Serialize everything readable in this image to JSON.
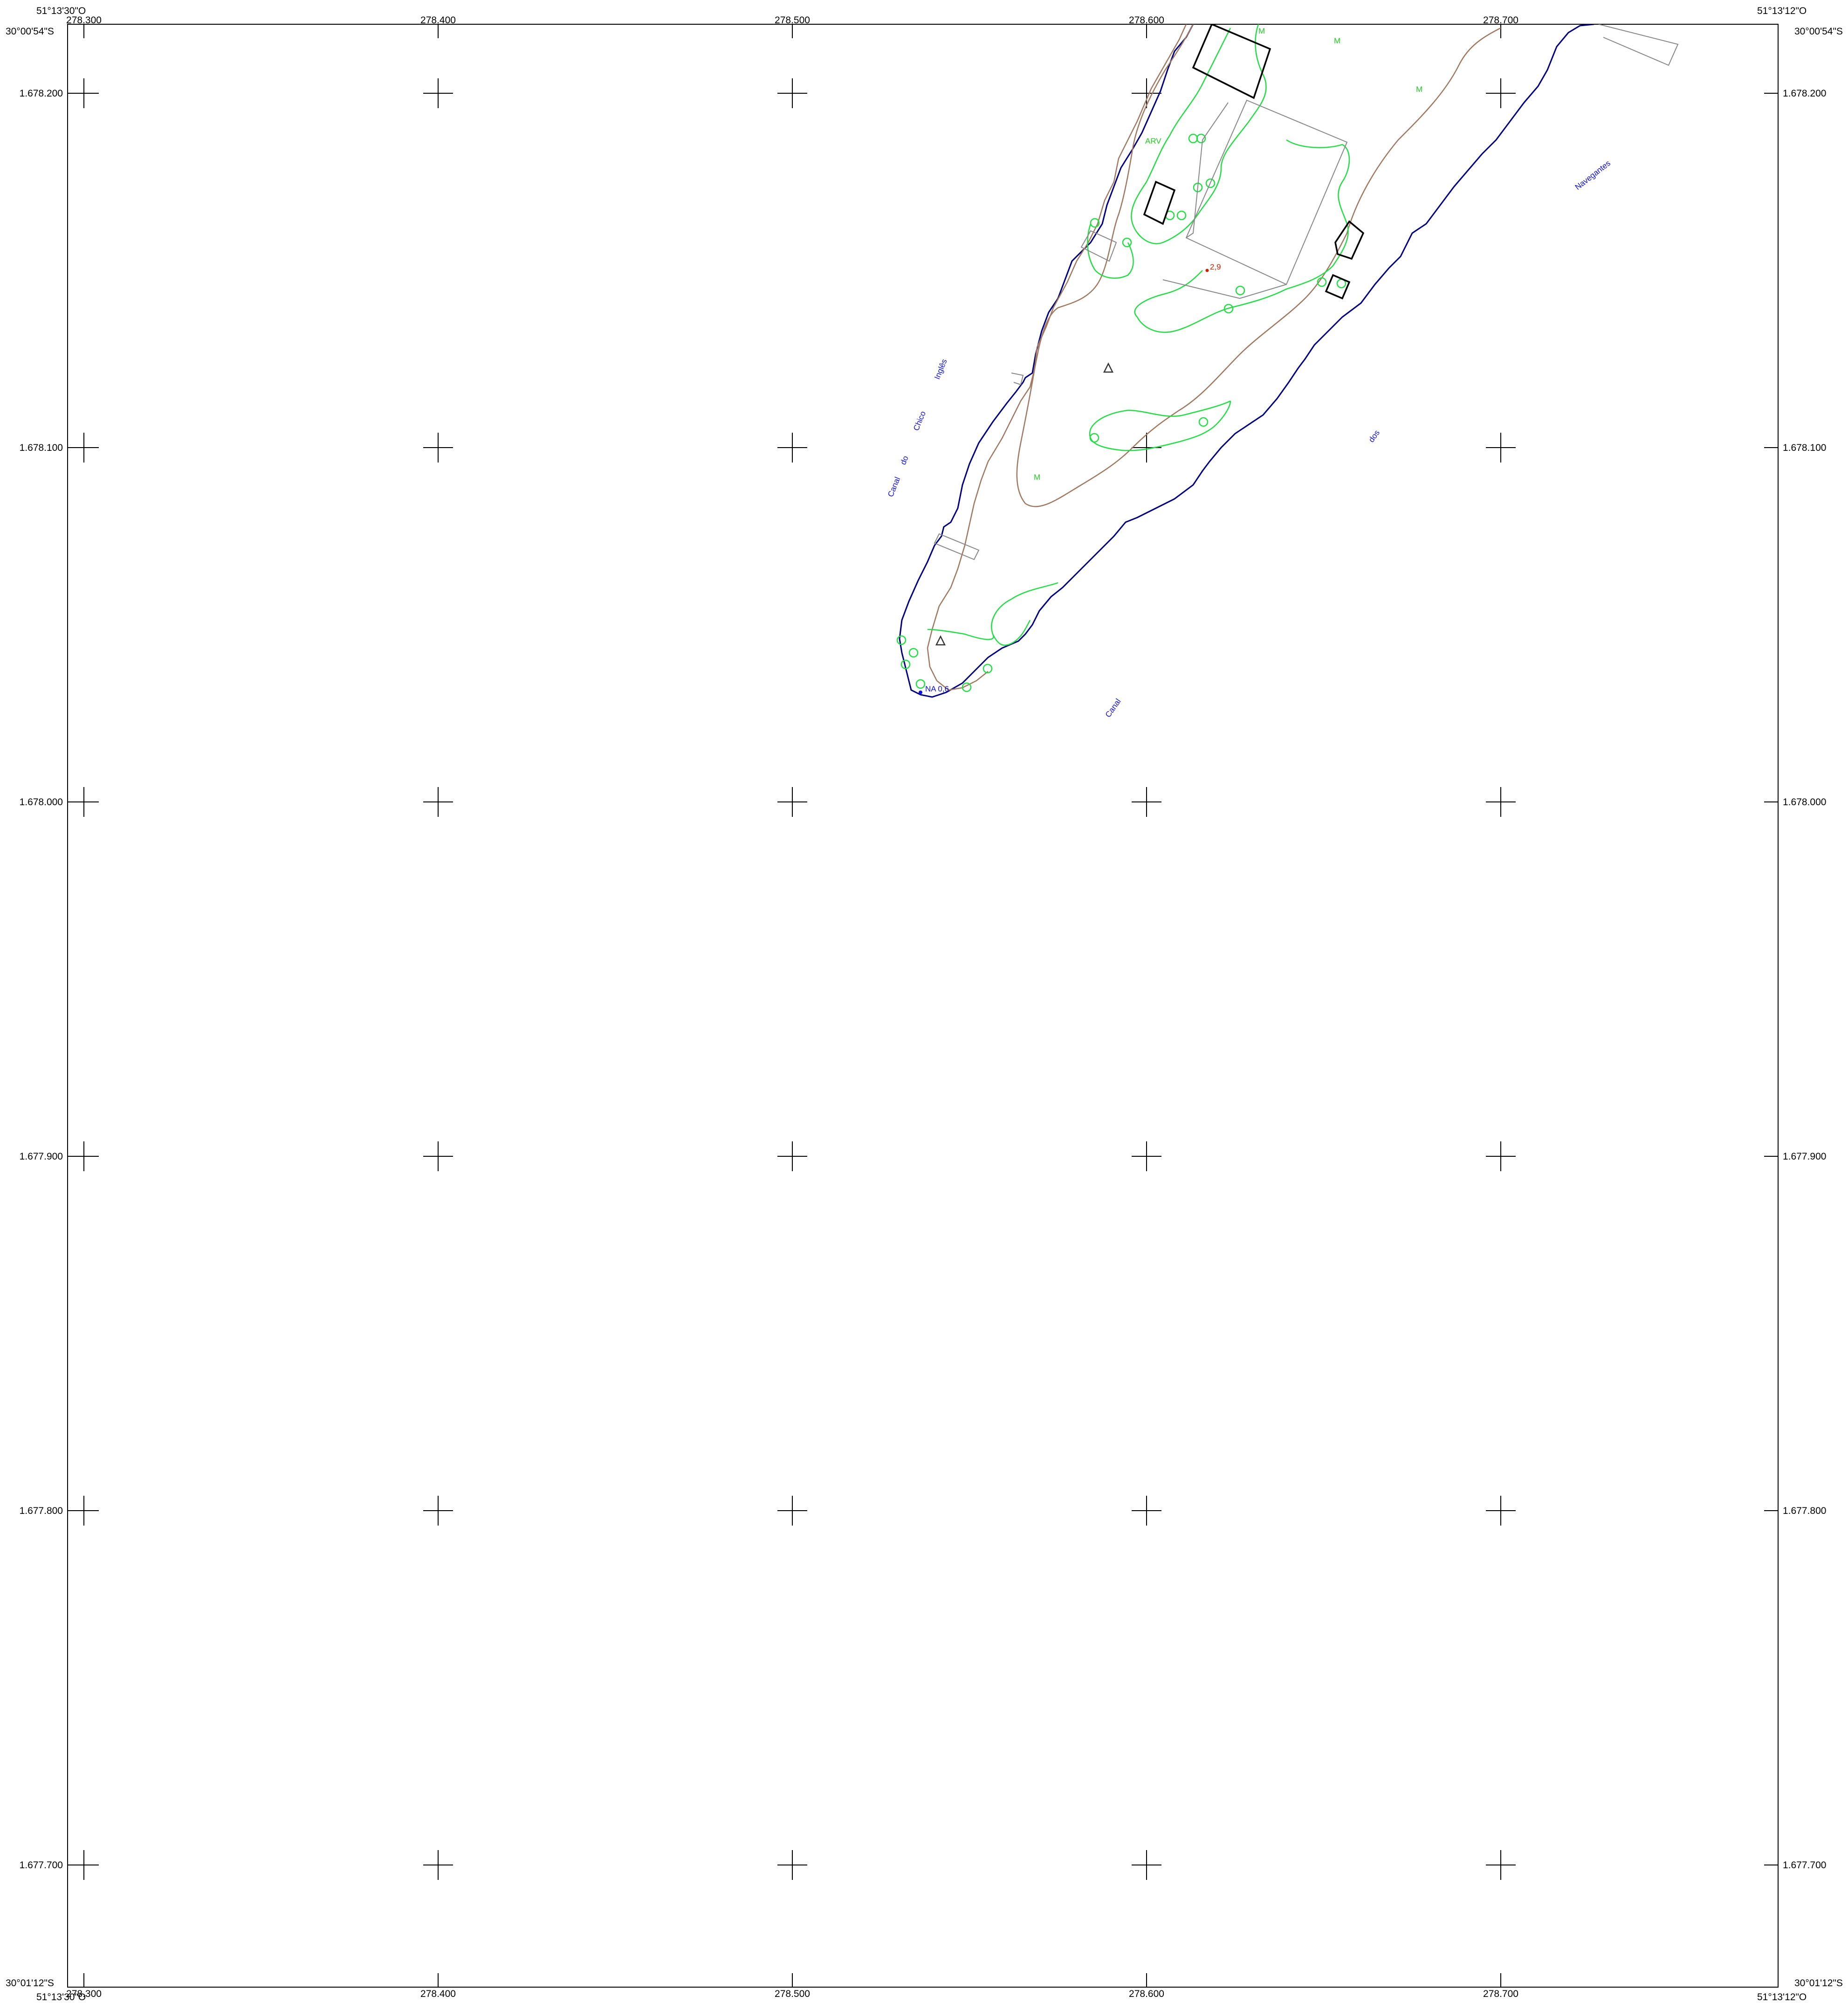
{
  "corners": {
    "top_left_lon": "51°13'30\"O",
    "top_left_lat": "30°00'54\"S",
    "top_right_lon": "51°13'12\"O",
    "top_right_lat": "30°00'54\"S",
    "bottom_left_lat": "30°01'12\"S",
    "bottom_left_lon": "51°13'30\"O",
    "bottom_right_lat": "30°01'12\"S",
    "bottom_right_lon": "51°13'12\"O"
  },
  "easting_labels": [
    "278.300",
    "278.400",
    "278.500",
    "278.600",
    "278.700"
  ],
  "northing_labels": [
    "1.678.200",
    "1.678.100",
    "1.678.000",
    "1.677.900",
    "1.677.800",
    "1.677.700"
  ],
  "map_labels": {
    "canal_do_chico_ingles": [
      "Canal",
      "do",
      "Chico",
      "Inglês"
    ],
    "canal": "Canal",
    "dos": "dos",
    "navegantes": "Navegantes",
    "na": "NA 0,6",
    "spot_height": "2,9",
    "arv": "ARV",
    "m1": "M",
    "m2": "M",
    "m3": "M",
    "m4": "M"
  },
  "colors": {
    "shoreline": "#000080",
    "contour": "#a07860",
    "vegetation": "#22dd44",
    "buildings": "#000000",
    "water_text": "#1010e0"
  }
}
